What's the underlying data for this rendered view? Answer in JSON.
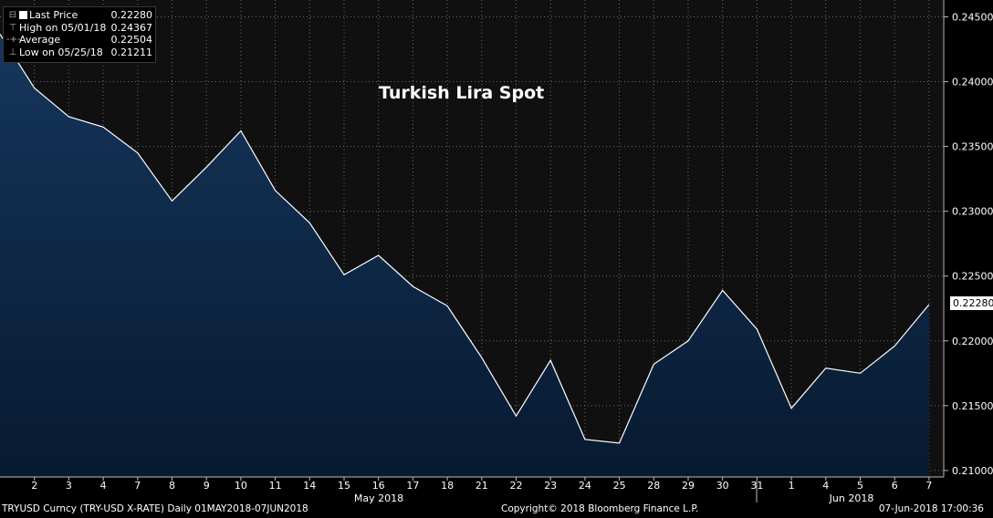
{
  "legend": {
    "last_label": "Last Price",
    "last_value": "0.22280",
    "high_label": "High on 05/01/18",
    "high_value": "0.24367",
    "avg_label": "Average",
    "avg_value": "0.22504",
    "low_label": "Low on 05/25/18",
    "low_value": "0.21211"
  },
  "footer": {
    "left": "TRYUSD Curncy (TRY-USD X-RATE)  Daily 01MAY2018-07JUN2018",
    "center": "Copyright© 2018 Bloomberg Finance L.P.",
    "right": "07-Jun-2018 17:00:36"
  },
  "last_badge": "0.22280",
  "colors": {
    "line": "#ffffff",
    "area": "#0b2542",
    "background": "#000000",
    "grid": "#666666"
  },
  "chart_data": {
    "type": "area",
    "title": "Turkish Lira Spot",
    "x_ticks": [
      "2",
      "3",
      "4",
      "7",
      "8",
      "9",
      "10",
      "11",
      "14",
      "15",
      "16",
      "17",
      "18",
      "21",
      "22",
      "23",
      "24",
      "25",
      "28",
      "29",
      "30",
      "31",
      "1",
      "4",
      "5",
      "6",
      "7"
    ],
    "month_labels": [
      "May 2018",
      "Jun 2018"
    ],
    "y_ticks": [
      "0.21000",
      "0.21500",
      "0.22000",
      "0.22500",
      "0.23000",
      "0.23500",
      "0.24000",
      "0.24500"
    ],
    "ylim": [
      0.2095,
      0.2463
    ],
    "grid": true,
    "series": [
      {
        "x": [
          "05/01",
          "05/02",
          "05/03",
          "05/04",
          "05/07",
          "05/08",
          "05/09",
          "05/10",
          "05/11",
          "05/14",
          "05/15",
          "05/16",
          "05/17",
          "05/18",
          "05/21",
          "05/22",
          "05/23",
          "05/24",
          "05/25",
          "05/28",
          "05/29",
          "05/30",
          "05/31",
          "06/01",
          "06/04",
          "06/05",
          "06/06",
          "06/07"
        ],
        "values": [
          0.24367,
          0.2395,
          0.2373,
          0.2365,
          0.2345,
          0.2308,
          0.2334,
          0.2362,
          0.2316,
          0.2291,
          0.2251,
          0.2266,
          0.2242,
          0.2227,
          0.2187,
          0.2142,
          0.2185,
          0.2124,
          0.21211,
          0.2182,
          0.22,
          0.2239,
          0.2209,
          0.2148,
          0.2179,
          0.2175,
          0.2196,
          0.2228
        ]
      }
    ]
  }
}
